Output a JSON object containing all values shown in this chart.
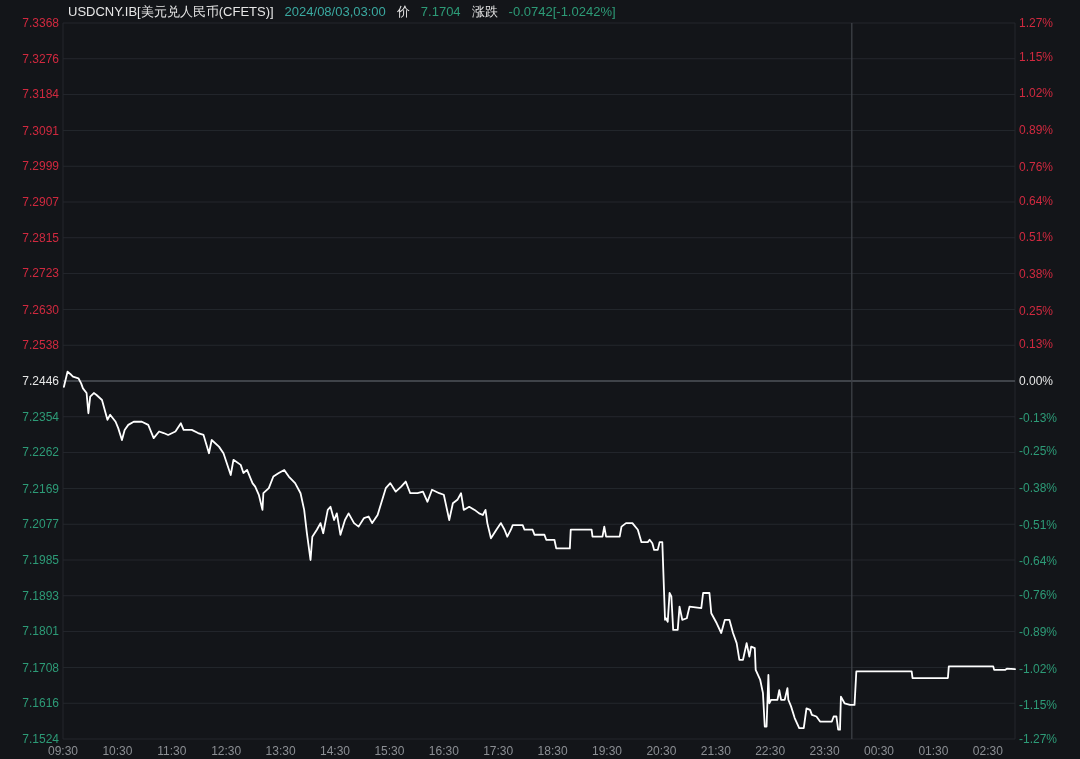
{
  "chart_data": {
    "type": "line",
    "title": "USDCNY.IB[美元兑人民币(CFETS)]",
    "subtitle": "2024/08/03,03:00",
    "annotations": [
      "价",
      "7.1704",
      "涨跌",
      "-0.0742[-1.0242%]"
    ],
    "x": [
      "2024-08-02T09:31",
      "2024-08-02T09:35",
      "2024-08-02T09:39",
      "2024-08-02T09:41",
      "2024-08-02T09:47",
      "2024-08-02T09:50",
      "2024-08-02T09:52",
      "2024-08-02T09:56",
      "2024-08-02T09:58",
      "2024-08-02T10:00",
      "2024-08-02T10:04",
      "2024-08-02T10:07",
      "2024-08-02T10:13",
      "2024-08-02T10:19",
      "2024-08-02T10:22",
      "2024-08-02T10:28",
      "2024-08-02T10:31",
      "2024-08-02T10:35",
      "2024-08-02T10:38",
      "2024-08-02T10:42",
      "2024-08-02T10:48",
      "2024-08-02T10:57",
      "2024-08-02T11:04",
      "2024-08-02T11:10",
      "2024-08-02T11:16",
      "2024-08-02T11:21",
      "2024-08-02T11:26",
      "2024-08-02T11:34",
      "2024-08-02T11:40",
      "2024-08-02T11:43",
      "2024-08-02T11:52",
      "2024-08-02T11:59",
      "2024-08-02T12:05",
      "2024-08-02T12:11",
      "2024-08-02T12:14",
      "2024-08-02T12:22",
      "2024-08-02T12:27",
      "2024-08-02T12:35",
      "2024-08-02T12:38",
      "2024-08-02T12:46",
      "2024-08-02T12:49",
      "2024-08-02T12:53",
      "2024-08-02T12:59",
      "2024-08-02T13:02",
      "2024-08-02T13:06",
      "2024-08-02T13:10",
      "2024-08-02T13:11",
      "2024-08-02T13:17",
      "2024-08-02T13:22",
      "2024-08-02T13:28",
      "2024-08-02T13:34",
      "2024-08-02T13:39",
      "2024-08-02T13:46",
      "2024-08-02T13:52",
      "2024-08-02T13:56",
      "2024-08-02T13:59",
      "2024-08-02T14:03",
      "2024-08-02T14:05",
      "2024-08-02T14:10",
      "2024-08-02T14:14",
      "2024-08-02T14:17",
      "2024-08-02T14:22",
      "2024-08-02T14:25",
      "2024-08-02T14:29",
      "2024-08-02T14:32",
      "2024-08-02T14:36",
      "2024-08-02T14:41",
      "2024-08-02T14:45",
      "2024-08-02T14:51",
      "2024-08-02T14:56",
      "2024-08-02T15:02",
      "2024-08-02T15:07",
      "2024-08-02T15:11",
      "2024-08-02T15:17",
      "2024-08-02T15:26",
      "2024-08-02T15:31",
      "2024-08-02T15:37",
      "2024-08-02T15:43",
      "2024-08-02T15:48",
      "2024-08-02T15:53",
      "2024-08-02T16:01",
      "2024-08-02T16:07",
      "2024-08-02T16:12",
      "2024-08-02T16:17",
      "2024-08-02T16:25",
      "2024-08-02T16:30",
      "2024-08-02T16:36",
      "2024-08-02T16:40",
      "2024-08-02T16:45",
      "2024-08-02T16:49",
      "2024-08-02T16:52",
      "2024-08-02T16:58",
      "2024-08-02T17:04",
      "2024-08-02T17:09",
      "2024-08-02T17:13",
      "2024-08-02T17:16",
      "2024-08-02T17:18",
      "2024-08-02T17:22",
      "2024-08-02T17:28",
      "2024-08-02T17:33",
      "2024-08-02T17:37",
      "2024-08-02T17:40",
      "2024-08-02T17:44",
      "2024-08-02T17:46",
      "2024-08-02T17:57",
      "2024-08-02T17:59",
      "2024-08-02T18:08",
      "2024-08-02T18:10",
      "2024-08-02T18:21",
      "2024-08-02T18:23",
      "2024-08-02T18:32",
      "2024-08-02T18:34",
      "2024-08-02T18:49",
      "2024-08-02T18:50",
      "2024-08-02T19:13",
      "2024-08-02T19:14",
      "2024-08-02T19:25",
      "2024-08-02T19:27",
      "2024-08-02T19:29",
      "2024-08-02T19:44",
      "2024-08-02T19:46",
      "2024-08-02T19:51",
      "2024-08-02T19:58",
      "2024-08-02T20:04",
      "2024-08-02T20:08",
      "2024-08-02T20:15",
      "2024-08-02T20:17",
      "2024-08-02T20:20",
      "2024-08-02T20:22",
      "2024-08-02T20:26",
      "2024-08-02T20:28",
      "2024-08-02T20:31",
      "2024-08-02T20:34",
      "2024-08-02T20:35",
      "2024-08-02T20:37",
      "2024-08-02T20:39",
      "2024-08-02T20:41",
      "2024-08-02T20:43",
      "2024-08-02T20:48",
      "2024-08-02T20:50",
      "2024-08-02T20:53",
      "2024-08-02T20:58",
      "2024-08-02T21:01",
      "2024-08-02T21:14",
      "2024-08-02T21:16",
      "2024-08-02T21:23",
      "2024-08-02T21:25",
      "2024-08-02T21:31",
      "2024-08-02T21:36",
      "2024-08-02T21:40",
      "2024-08-02T21:45",
      "2024-08-02T21:49",
      "2024-08-02T21:53",
      "2024-08-02T21:56",
      "2024-08-02T22:00",
      "2024-08-02T22:04",
      "2024-08-02T22:07",
      "2024-08-02T22:09",
      "2024-08-02T22:13",
      "2024-08-02T22:14",
      "2024-08-02T22:19",
      "2024-08-02T22:22",
      "2024-08-02T22:24",
      "2024-08-02T22:26",
      "2024-08-02T22:28",
      "2024-08-02T22:29",
      "2024-08-02T22:31",
      "2024-08-02T22:38",
      "2024-08-02T22:40",
      "2024-08-02T22:42",
      "2024-08-02T22:46",
      "2024-08-02T22:49",
      "2024-08-02T22:50",
      "2024-08-02T22:53",
      "2024-08-02T22:57",
      "2024-08-02T23:02",
      "2024-08-02T23:07",
      "2024-08-02T23:10",
      "2024-08-02T23:14",
      "2024-08-02T23:16",
      "2024-08-02T23:21",
      "2024-08-02T23:25",
      "2024-08-02T23:38",
      "2024-08-02T23:40",
      "2024-08-02T23:43",
      "2024-08-02T23:45",
      "2024-08-02T23:47",
      "2024-08-02T23:48",
      "2024-08-02T23:52",
      "2024-08-02T23:58",
      "2024-08-03T00:03",
      "2024-08-03T00:05",
      "2024-08-03T01:06",
      "2024-08-03T01:07",
      "2024-08-03T01:46",
      "2024-08-03T01:47",
      "2024-08-03T02:36",
      "2024-08-03T02:37",
      "2024-08-03T02:49",
      "2024-08-03T02:51",
      "2024-08-03T03:00"
    ],
    "series": [
      {
        "color": "#ffffff",
        "values": [
          7.2431,
          7.247,
          7.2462,
          7.2457,
          7.2453,
          7.244,
          7.2427,
          7.2415,
          7.2363,
          7.2406,
          7.2415,
          7.241,
          7.2397,
          7.2346,
          7.2359,
          7.2341,
          7.2324,
          7.2294,
          7.232,
          7.2333,
          7.2341,
          7.2341,
          7.2333,
          7.2299,
          7.2316,
          7.2312,
          7.2307,
          7.2316,
          7.2337,
          7.232,
          7.232,
          7.2312,
          7.2307,
          7.226,
          7.2294,
          7.2277,
          7.226,
          7.2204,
          7.2243,
          7.223,
          7.2209,
          7.2217,
          7.2183,
          7.2174,
          7.2153,
          7.2114,
          7.2157,
          7.217,
          7.22,
          7.2209,
          7.2217,
          7.22,
          7.2183,
          7.2157,
          7.2114,
          7.2054,
          7.1985,
          7.2045,
          7.2063,
          7.208,
          7.2054,
          7.2114,
          7.2122,
          7.2088,
          7.2105,
          7.205,
          7.2088,
          7.2105,
          7.208,
          7.2071,
          7.2093,
          7.2097,
          7.208,
          7.2101,
          7.217,
          7.2183,
          7.2161,
          7.2174,
          7.2187,
          7.2157,
          7.2157,
          7.2161,
          7.2135,
          7.2166,
          7.2157,
          7.2153,
          7.2088,
          7.2131,
          7.214,
          7.2157,
          7.2114,
          7.2122,
          7.2114,
          7.2105,
          7.2101,
          7.2114,
          7.208,
          7.2041,
          7.2063,
          7.208,
          7.2063,
          7.2045,
          7.2063,
          7.2075,
          7.2075,
          7.2063,
          7.2063,
          7.205,
          7.205,
          7.2037,
          7.2037,
          7.2015,
          7.2015,
          7.2063,
          7.2063,
          7.2045,
          7.2045,
          7.2071,
          7.2045,
          7.2045,
          7.2071,
          7.208,
          7.208,
          7.2063,
          7.2031,
          7.2031,
          7.2037,
          7.2028,
          7.2011,
          7.2011,
          7.2031,
          7.2031,
          7.1831,
          7.1835,
          7.1826,
          7.19,
          7.1891,
          7.1805,
          7.1805,
          7.1865,
          7.1831,
          7.1835,
          7.1865,
          7.1861,
          7.19,
          7.19,
          7.1848,
          7.1822,
          7.1797,
          7.1831,
          7.1831,
          7.1797,
          7.1771,
          7.1728,
          7.1728,
          7.1771,
          7.1736,
          7.1762,
          7.1758,
          7.1702,
          7.1676,
          7.1642,
          7.1556,
          7.1556,
          7.1689,
          7.1616,
          7.1625,
          7.1625,
          7.165,
          7.1625,
          7.1625,
          7.1655,
          7.1625,
          7.1608,
          7.1578,
          7.1552,
          7.1552,
          7.1603,
          7.1599,
          7.1586,
          7.1582,
          7.1569,
          7.1569,
          7.1582,
          7.1582,
          7.1548,
          7.1548,
          7.1633,
          7.1616,
          7.1612,
          7.1612,
          7.1698,
          7.1698,
          7.1681,
          7.1681,
          7.1711,
          7.1711,
          7.1702,
          7.1702,
          7.1705,
          7.1704
        ]
      }
    ],
    "xlim": [
      "2024-08-02T09:30",
      "2024-08-03T03:00"
    ],
    "xticks": [
      {
        "value": "2024-08-02T09:30",
        "label": "09:30"
      },
      {
        "value": "2024-08-02T10:30",
        "label": "10:30"
      },
      {
        "value": "2024-08-02T11:30",
        "label": "11:30"
      },
      {
        "value": "2024-08-02T12:30",
        "label": "12:30"
      },
      {
        "value": "2024-08-02T13:30",
        "label": "13:30"
      },
      {
        "value": "2024-08-02T14:30",
        "label": "14:30"
      },
      {
        "value": "2024-08-02T15:30",
        "label": "15:30"
      },
      {
        "value": "2024-08-02T16:30",
        "label": "16:30"
      },
      {
        "value": "2024-08-02T17:30",
        "label": "17:30"
      },
      {
        "value": "2024-08-02T18:30",
        "label": "18:30"
      },
      {
        "value": "2024-08-02T19:30",
        "label": "19:30"
      },
      {
        "value": "2024-08-02T20:30",
        "label": "20:30"
      },
      {
        "value": "2024-08-02T21:30",
        "label": "21:30"
      },
      {
        "value": "2024-08-02T22:30",
        "label": "22:30"
      },
      {
        "value": "2024-08-02T23:30",
        "label": "23:30"
      },
      {
        "value": "2024-08-03T00:30",
        "label": "00:30"
      },
      {
        "value": "2024-08-03T01:30",
        "label": "01:30"
      },
      {
        "value": "2024-08-03T02:30",
        "label": "02:30"
      }
    ],
    "ylim": [
      7.1524,
      7.3368
    ],
    "yticks": [
      7.3368,
      7.3276,
      7.3184,
      7.3091,
      7.2999,
      7.2907,
      7.2815,
      7.2723,
      {
        "value": 7.263,
        "label": "7.2630"
      },
      7.2538,
      7.2446,
      7.2354,
      7.2262,
      7.2169,
      7.2077,
      7.1985,
      7.1893,
      7.1801,
      7.1708,
      7.1616,
      7.1524
    ],
    "y2lim": [
      -1.27,
      1.27
    ],
    "y2ticks": [
      {
        "value": 1.27,
        "label": "1.27%"
      },
      {
        "value": 1.15,
        "label": "1.15%"
      },
      {
        "value": 1.02,
        "label": "1.02%"
      },
      {
        "value": 0.89,
        "label": "0.89%"
      },
      {
        "value": 0.76,
        "label": "0.76%"
      },
      {
        "value": 0.64,
        "label": "0.64%"
      },
      {
        "value": 0.51,
        "label": "0.51%"
      },
      {
        "value": 0.38,
        "label": "0.38%"
      },
      {
        "value": 0.25,
        "label": "0.25%"
      },
      {
        "value": 0.13,
        "label": "0.13%"
      },
      {
        "value": 0,
        "label": "0.00%"
      },
      {
        "value": -0.13,
        "label": "-0.13%"
      },
      {
        "value": -0.25,
        "label": "-0.25%"
      },
      {
        "value": -0.38,
        "label": "-0.38%"
      },
      {
        "value": -0.51,
        "label": "-0.51%"
      },
      {
        "value": -0.64,
        "label": "-0.64%"
      },
      {
        "value": -0.76,
        "label": "-0.76%"
      },
      {
        "value": -0.89,
        "label": "-0.89%"
      },
      {
        "value": -1.02,
        "label": "-1.02%"
      },
      {
        "value": -1.15,
        "label": "-1.15%"
      },
      {
        "value": -1.27,
        "label": "-1.27%"
      }
    ],
    "ref_lines": [
      {
        "axis": "y",
        "value": 7.2446,
        "color": "#4d5057"
      },
      {
        "axis": "x",
        "value": "2024-08-03T00:00",
        "color": "#3e4147"
      }
    ],
    "grid": "y",
    "line_style": "solid"
  }
}
